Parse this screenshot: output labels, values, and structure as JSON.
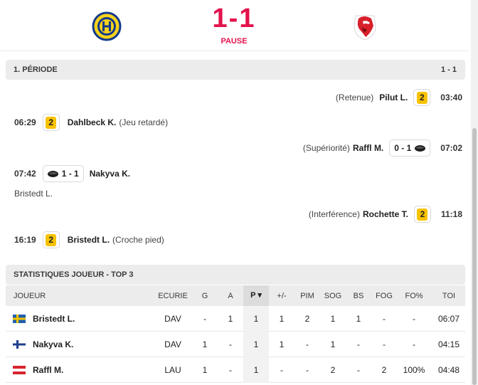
{
  "match": {
    "score": "1-1",
    "status": "PAUSE",
    "home_logo": "hc-davos-logo",
    "away_logo": "lausanne-hc-lion-logo"
  },
  "period": {
    "title": "1. PÉRIODE",
    "score": "1 - 1",
    "events": [
      {
        "side": "right",
        "reason": "(Retenue)",
        "player": "Pilut L.",
        "type": "penalty",
        "minutes": "2",
        "time": "03:40"
      },
      {
        "side": "left",
        "time": "06:29",
        "type": "penalty",
        "minutes": "2",
        "player": "Dahlbeck K.",
        "reason": "(Jeu retardé)"
      },
      {
        "side": "right",
        "reason": "(Supériorité)",
        "player": "Raffl M.",
        "type": "goal",
        "score": "0 - 1",
        "time": "07:02"
      },
      {
        "side": "left",
        "time": "07:42",
        "type": "goal",
        "score": "1 - 1",
        "player": "Nakyva K.",
        "assist": "Bristedt L."
      },
      {
        "side": "right",
        "reason": "(Interférence)",
        "player": "Rochette T.",
        "type": "penalty",
        "minutes": "2",
        "time": "11:18"
      },
      {
        "side": "left",
        "time": "16:19",
        "type": "penalty",
        "minutes": "2",
        "player": "Bristedt L.",
        "reason": "(Croche pied)"
      }
    ]
  },
  "stats": {
    "title": "STATISTIQUES JOUEUR - TOP 3",
    "columns": [
      "JOUEUR",
      "ECURIE",
      "G",
      "A",
      "P ▾",
      "+/-",
      "PIM",
      "SOG",
      "BS",
      "FOG",
      "FO%",
      "TOI"
    ],
    "rows": [
      {
        "flag": "sweden-flag",
        "player": "Bristedt L.",
        "team": "DAV",
        "g": "-",
        "a": "1",
        "p": "1",
        "pm": "1",
        "pim": "2",
        "sog": "1",
        "bs": "1",
        "fog": "-",
        "fop": "-",
        "toi": "06:07"
      },
      {
        "flag": "finland-flag",
        "player": "Nakyva K.",
        "team": "DAV",
        "g": "1",
        "a": "-",
        "p": "1",
        "pm": "1",
        "pim": "-",
        "sog": "1",
        "bs": "-",
        "fog": "-",
        "fop": "-",
        "toi": "04:15"
      },
      {
        "flag": "austria-flag",
        "player": "Raffl M.",
        "team": "LAU",
        "g": "1",
        "a": "-",
        "p": "1",
        "pm": "-",
        "pim": "-",
        "sog": "2",
        "bs": "-",
        "fog": "2",
        "fop": "100%",
        "toi": "04:48"
      }
    ]
  },
  "colors": {
    "accent": "#e4124c",
    "penalty": "#f8c200"
  }
}
